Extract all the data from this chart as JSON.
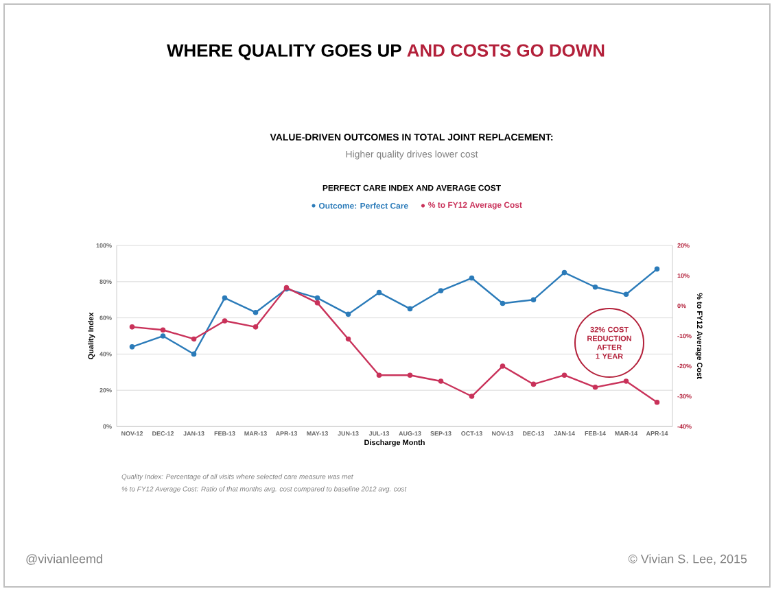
{
  "chart_data": {
    "type": "line",
    "title": "VALUE-DRIVEN OUTCOMES IN TOTAL JOINT REPLACEMENT:",
    "subtitle": "Higher quality drives lower cost",
    "xlabel": "Discharge Month",
    "ylabel": "Quality Index",
    "y2label": "% to FY12 Average Cost",
    "categories": [
      "NOV-12",
      "DEC-12",
      "JAN-13",
      "FEB-13",
      "MAR-13",
      "APR-13",
      "MAY-13",
      "JUN-13",
      "JUL-13",
      "AUG-13",
      "SEP-13",
      "OCT-13",
      "NOV-13",
      "DEC-13",
      "JAN-14",
      "FEB-14",
      "MAR-14",
      "APR-14"
    ],
    "series": [
      {
        "name": "Outcome: Perfect Care",
        "color": "#2b7bb9",
        "values": [
          44,
          50,
          40,
          71,
          63,
          76,
          71,
          62,
          74,
          65,
          75,
          82,
          68,
          70,
          85,
          77,
          73,
          87
        ]
      },
      {
        "name": "% to FY12 Average Cost",
        "color": "#c9325a",
        "axis": "y2",
        "values": [
          -7,
          -8,
          -11,
          -5,
          -7,
          6,
          1,
          -11,
          -23,
          -23,
          -25,
          -30,
          -20,
          -26,
          -23,
          -27,
          -25,
          -32
        ]
      }
    ],
    "ylim": [
      0,
      100
    ],
    "yticks": [
      {
        "value": 0,
        "label": "0%"
      },
      {
        "value": 20,
        "label": "20%"
      },
      {
        "value": 40,
        "label": "40%"
      },
      {
        "value": 60,
        "label": "60%"
      },
      {
        "value": 80,
        "label": "80%"
      },
      {
        "value": 100,
        "label": "100%"
      }
    ],
    "y2lim": [
      -40,
      20
    ],
    "y2ticks": [
      {
        "value": -40,
        "label": "-40%"
      },
      {
        "value": -30,
        "label": "-30%"
      },
      {
        "value": -20,
        "label": "-20%"
      },
      {
        "value": -10,
        "label": "-10%"
      },
      {
        "value": 0,
        "label": "0%"
      },
      {
        "value": 10,
        "label": "10%"
      },
      {
        "value": 20,
        "label": "20%"
      }
    ],
    "grid": "y",
    "legend": "top",
    "marker": "circle",
    "annotations": [
      "WHERE QUALITY GOES UP",
      "AND COSTS GO DOWN",
      "PERFECT CARE INDEX AND AVERAGE COST",
      "32% COST REDUCTION AFTER 1 YEAR",
      "Quality Index: Percentage of all visits where selected care measure was met",
      "% to FY12 Average Cost: Ratio of that months avg. cost compared to baseline 2012 avg. cost",
      "@vivianleemd",
      "© Vivian S. Lee, 2015"
    ]
  }
}
